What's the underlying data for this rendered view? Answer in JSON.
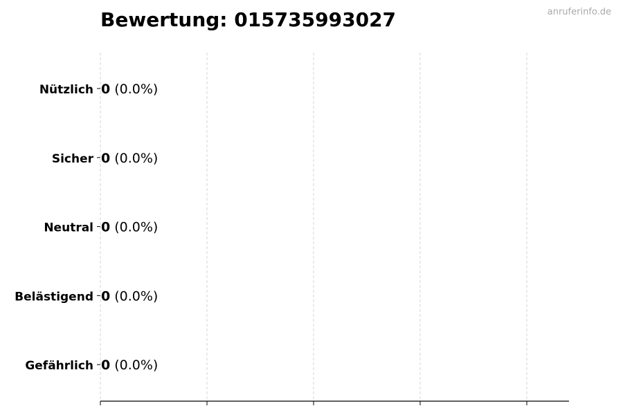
{
  "chart_data": {
    "type": "bar",
    "orientation": "horizontal",
    "title": "Bewertung: 015735993027",
    "categories": [
      "Nützlich",
      "Sicher",
      "Neutral",
      "Belästigend",
      "Gefährlich"
    ],
    "values": [
      0,
      0,
      0,
      0,
      0
    ],
    "percent_labels": [
      "(0.0%)",
      "(0.0%)",
      "(0.0%)",
      "(0.0%)",
      "(0.0%)"
    ],
    "xlabel": "",
    "ylabel": "",
    "x_tick_labels_shown": false,
    "grid": "vertical dashed",
    "legend": "none",
    "colors": {
      "bar_edge": "#000000",
      "grid": "#cccccc",
      "watermark": "#aaaaaa"
    }
  },
  "watermark": "anruferinfo.de"
}
